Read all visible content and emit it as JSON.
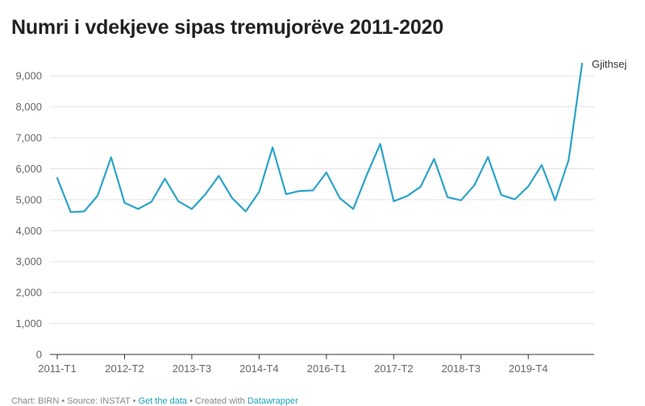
{
  "chart_data": {
    "type": "line",
    "title": "Numri i vdekjeve sipas tremujorëve 2011-2020",
    "xlabel": "",
    "ylabel": "",
    "ylim": [
      0,
      9500
    ],
    "yticks": [
      0,
      1000,
      2000,
      3000,
      4000,
      5000,
      6000,
      7000,
      8000,
      9000
    ],
    "ytick_labels": [
      "0",
      "1,000",
      "2,000",
      "3,000",
      "4,000",
      "5,000",
      "6,000",
      "7,000",
      "8,000",
      "9,000"
    ],
    "x_tick_labels": [
      "2011-T1",
      "2012-T2",
      "2013-T3",
      "2014-T4",
      "2016-T1",
      "2017-T2",
      "2018-T3",
      "2019-T4"
    ],
    "x_tick_every": 5,
    "grid": true,
    "line_color": "#2aa3c9",
    "series": [
      {
        "name": "Gjithsej",
        "values": [
          5700,
          4600,
          4620,
          5130,
          6370,
          4900,
          4700,
          4930,
          5680,
          4950,
          4700,
          5170,
          5770,
          5050,
          4620,
          5250,
          6690,
          5180,
          5280,
          5300,
          5880,
          5050,
          4700,
          5800,
          6800,
          4950,
          5120,
          5420,
          6320,
          5080,
          4980,
          5470,
          6380,
          5150,
          5010,
          5430,
          6120,
          4980,
          6280,
          9400
        ]
      }
    ]
  },
  "footer": {
    "text": "Chart: BIRN • Source: INSTAT •",
    "link1": "Get the data",
    "sep": "• Created with",
    "link2": "Datawrapper"
  }
}
